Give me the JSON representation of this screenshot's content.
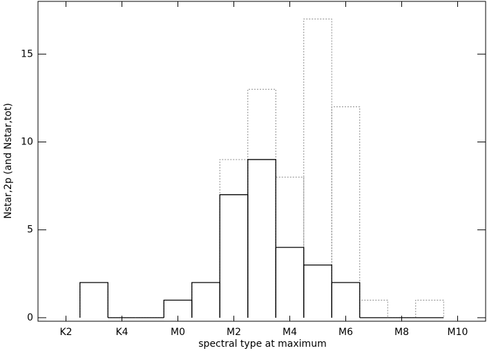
{
  "chart_data": {
    "type": "histogram",
    "xlabel": "spectral type at maximum",
    "ylabel": "Nstar,2p (and Nstar,tot)",
    "bins": [
      0.5,
      1.5,
      2.5,
      3.5,
      4.5,
      5.5,
      6.5,
      7.5,
      8.5,
      9.5,
      10.5,
      11.5,
      12.5,
      13.5
    ],
    "series": [
      {
        "name": "Nstar,tot",
        "color": "#888888",
        "dashed": true,
        "values": [
          2,
          0,
          0,
          1,
          2,
          9,
          13,
          8,
          17,
          12,
          1,
          0,
          1
        ]
      },
      {
        "name": "Nstar,2p",
        "color": "#000000",
        "dashed": false,
        "values": [
          2,
          0,
          0,
          1,
          2,
          7,
          9,
          4,
          3,
          2,
          0,
          0,
          0
        ]
      }
    ],
    "xlim": [
      -1,
      15
    ],
    "xticks": [
      {
        "value": 0,
        "label": "K2"
      },
      {
        "value": 2,
        "label": "K4"
      },
      {
        "value": 4,
        "label": "M0"
      },
      {
        "value": 6,
        "label": "M2"
      },
      {
        "value": 8,
        "label": "M4"
      },
      {
        "value": 10,
        "label": "M6"
      },
      {
        "value": 12,
        "label": "M8"
      },
      {
        "value": 14,
        "label": "M10"
      }
    ],
    "ylim": [
      -0.2,
      18
    ],
    "yticks": [
      0,
      5,
      10,
      15
    ]
  }
}
